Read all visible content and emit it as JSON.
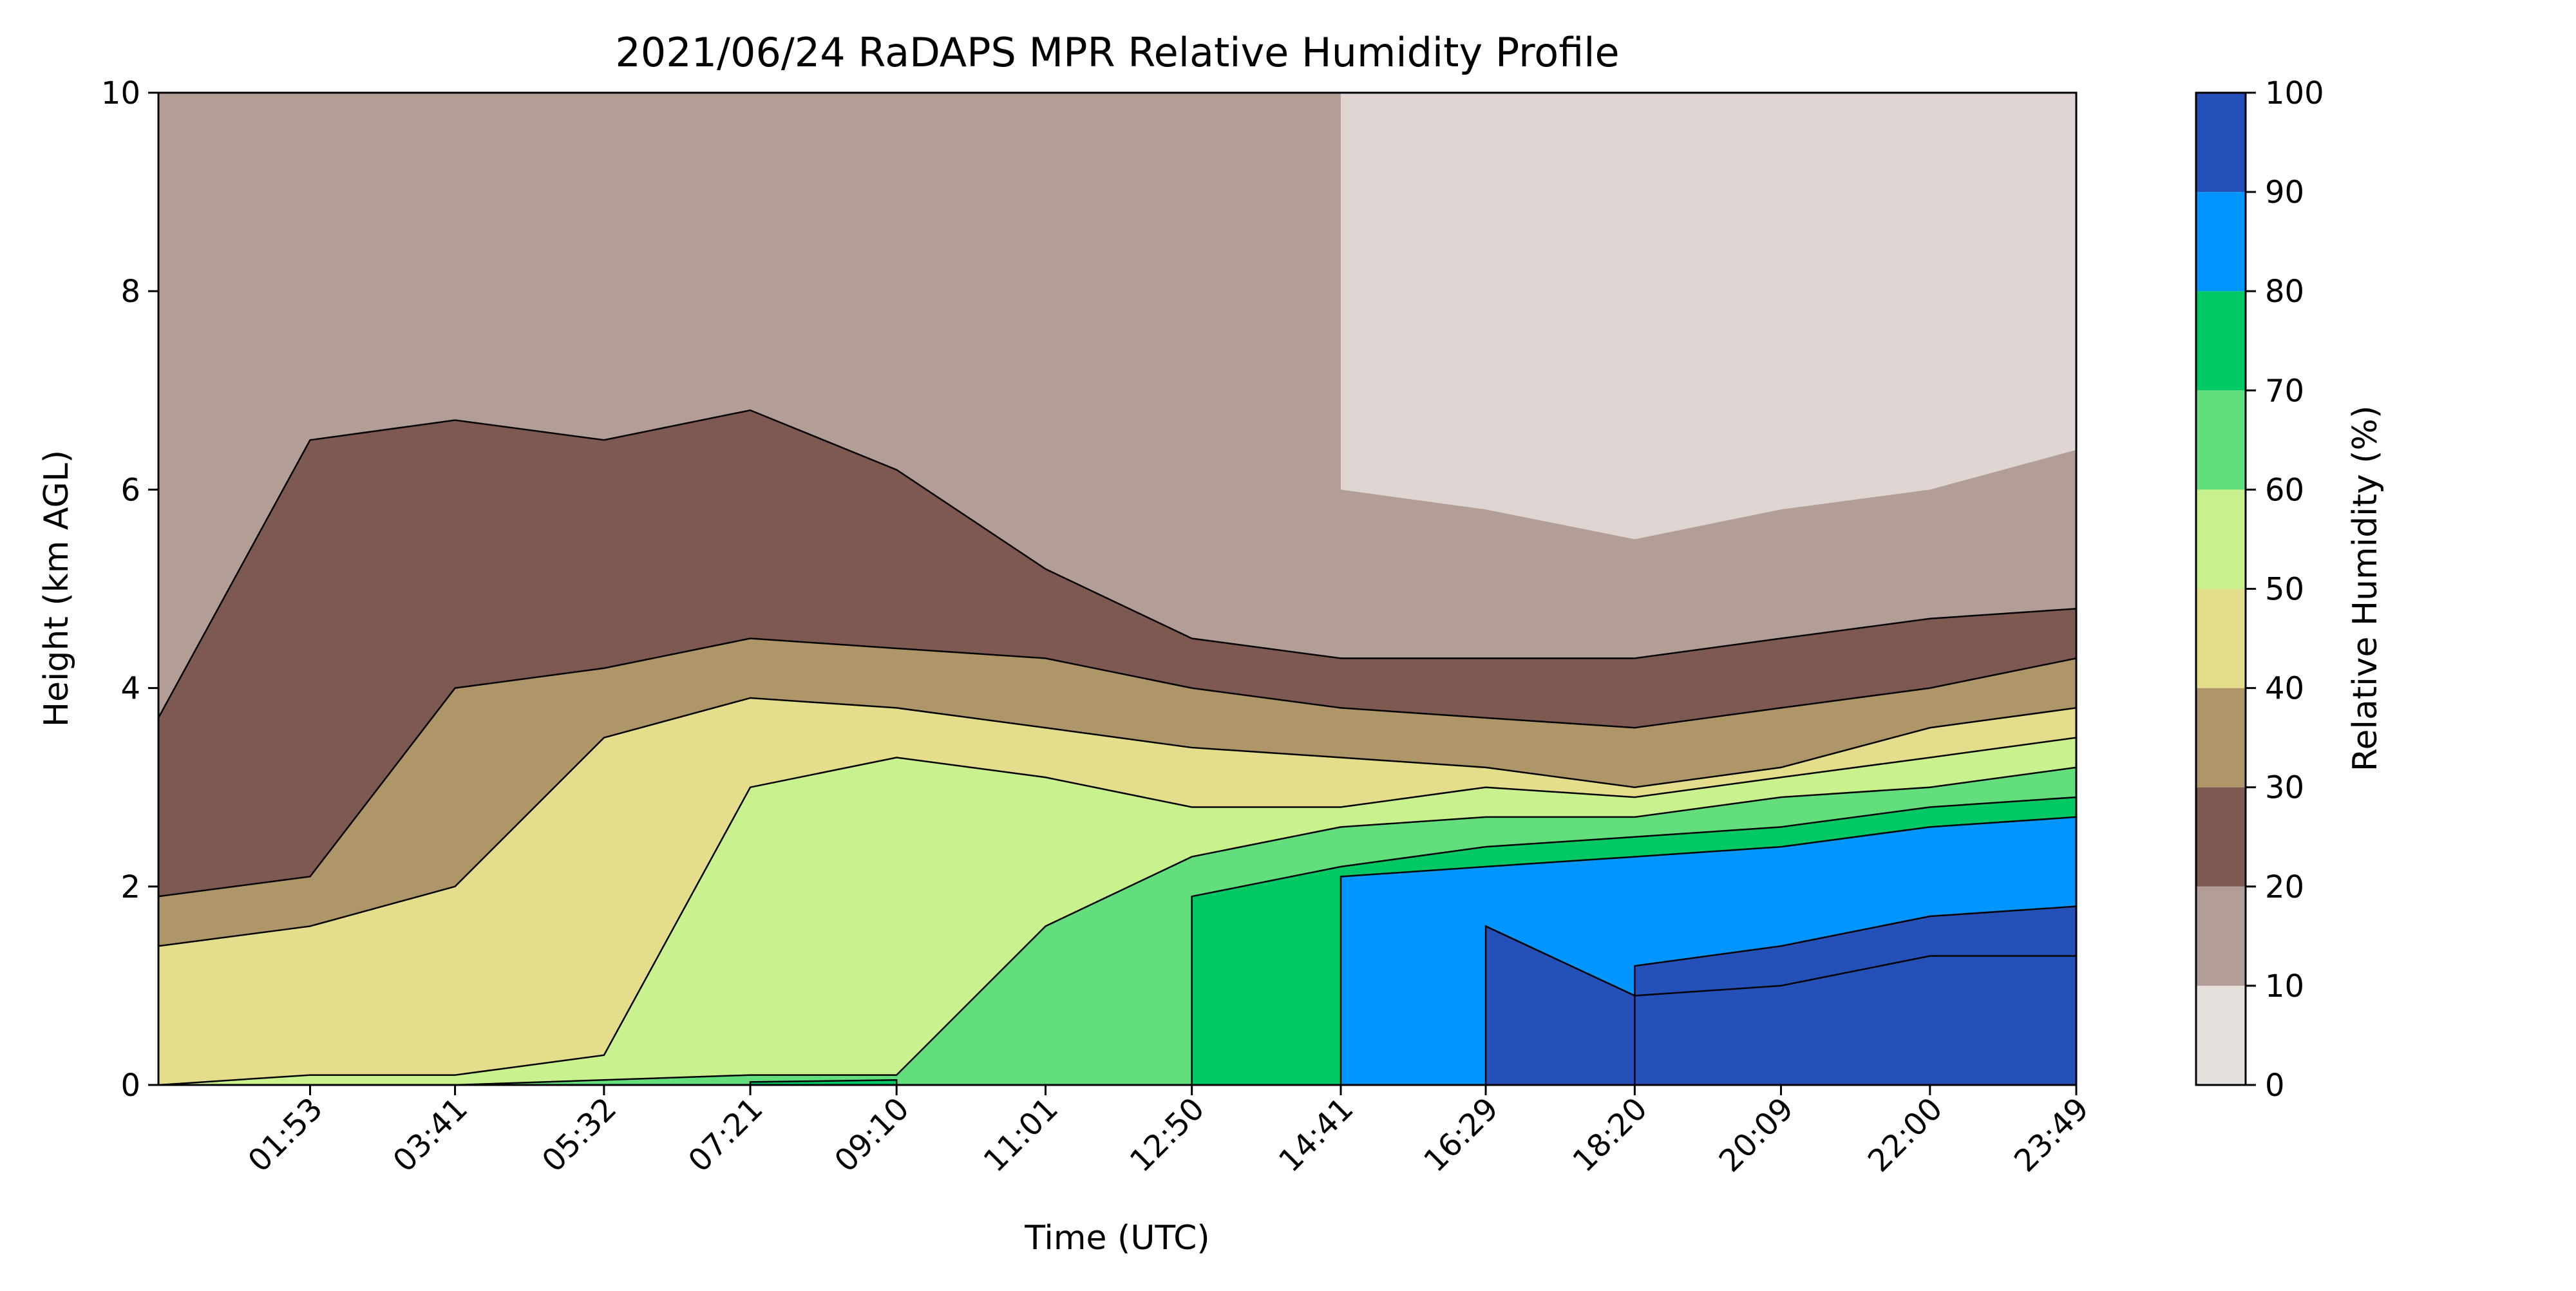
{
  "chart_data": {
    "type": "heatmap",
    "subtype": "filled-contour",
    "title": "2021/06/24 RaDAPS MPR Relative Humidity Profile",
    "xlabel": "Time (UTC)",
    "ylabel": "Height (km AGL)",
    "x_ticks": [
      "01:53",
      "03:41",
      "05:32",
      "07:21",
      "09:10",
      "11:01",
      "12:50",
      "14:41",
      "16:29",
      "18:20",
      "20:09",
      "22:00",
      "23:49"
    ],
    "x_range": [
      "00:00",
      "23:49"
    ],
    "ylim": [
      0,
      10
    ],
    "y_ticks": [
      "0",
      "2",
      "4",
      "6",
      "8",
      "10"
    ],
    "colorbar": {
      "label": "Relative Humidity (%)",
      "levels": [
        0,
        10,
        20,
        30,
        40,
        50,
        60,
        70,
        80,
        90,
        100
      ],
      "tick_labels": [
        "0",
        "10",
        "20",
        "30",
        "40",
        "50",
        "60",
        "70",
        "80",
        "90",
        "100"
      ],
      "colors": [
        "#e6e0dd",
        "#b29d97",
        "#7d5951",
        "#ae9668",
        "#e4dd8b",
        "#c9f18e",
        "#62df7c",
        "#00c864",
        "#0095ff",
        "#2550b8"
      ]
    },
    "grid": false,
    "legend": "colorbar-right",
    "approx_contours_km": {
      "note": "Approximate upper boundary height (km) of each relative-humidity band at each labeled time",
      "times": [
        "00:00",
        "01:53",
        "03:41",
        "05:32",
        "07:21",
        "09:10",
        "11:01",
        "12:50",
        "14:41",
        "16:29",
        "18:20",
        "20:09",
        "22:00",
        "23:49"
      ],
      "rh_0_10_low_edge": [
        null,
        null,
        null,
        null,
        null,
        null,
        null,
        null,
        6.0,
        5.8,
        5.5,
        5.8,
        6.0,
        6.4
      ],
      "rh_10_20_low_edge": [
        3.7,
        6.5,
        6.7,
        6.5,
        6.8,
        6.2,
        5.2,
        4.5,
        4.3,
        4.3,
        4.3,
        4.5,
        4.7,
        4.8
      ],
      "rh_20_30_low_edge": [
        1.9,
        2.1,
        4.0,
        4.2,
        4.5,
        4.4,
        4.3,
        4.0,
        3.8,
        3.7,
        3.6,
        3.8,
        4.0,
        4.3
      ],
      "rh_30_40_low_edge": [
        1.4,
        1.6,
        2.0,
        3.5,
        3.9,
        3.8,
        3.6,
        3.4,
        3.3,
        3.2,
        3.0,
        3.2,
        3.6,
        3.8
      ],
      "rh_40_50_low_edge": [
        0.0,
        0.1,
        0.1,
        0.3,
        3.0,
        3.3,
        3.1,
        2.8,
        2.8,
        3.0,
        2.9,
        3.1,
        3.3,
        3.5
      ],
      "rh_50_60_low_edge": [
        null,
        null,
        0.0,
        0.05,
        0.1,
        0.1,
        1.6,
        2.3,
        2.6,
        2.7,
        2.7,
        2.9,
        3.0,
        3.2
      ],
      "rh_60_70_low_edge": [
        null,
        null,
        null,
        null,
        0.03,
        0.05,
        null,
        1.9,
        2.2,
        2.4,
        2.5,
        2.6,
        2.8,
        2.9
      ],
      "rh_70_80_low_edge": [
        null,
        null,
        null,
        null,
        null,
        null,
        null,
        null,
        2.1,
        2.2,
        2.3,
        2.4,
        2.6,
        2.7
      ],
      "rh_80_90_low_edge": [
        null,
        null,
        null,
        null,
        null,
        null,
        null,
        null,
        null,
        1.6,
        0.9,
        1.0,
        1.3,
        1.3
      ],
      "rh_90_100_low_edge": [
        null,
        null,
        null,
        null,
        null,
        null,
        null,
        null,
        null,
        null,
        1.2,
        1.4,
        1.7,
        1.8
      ]
    }
  }
}
